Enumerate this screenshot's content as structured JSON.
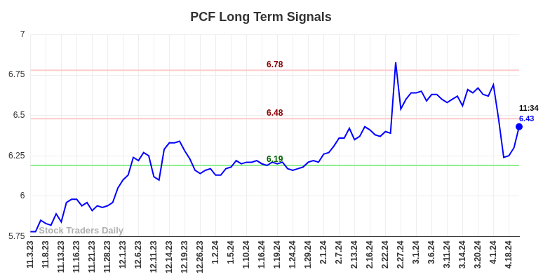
{
  "chart_data": {
    "type": "line",
    "title": "PCF Long Term Signals",
    "categories": [
      "11.3.23",
      null,
      null,
      "11.8.23",
      null,
      null,
      "11.13.23",
      null,
      null,
      "11.16.23",
      null,
      null,
      "11.21.23",
      null,
      null,
      "11.28.23",
      null,
      null,
      "12.1.23",
      null,
      null,
      "12.6.23",
      null,
      null,
      "12.11.23",
      null,
      null,
      "12.14.23",
      null,
      null,
      "12.19.23",
      null,
      null,
      "12.26.23",
      null,
      null,
      "1.2.24",
      null,
      null,
      "1.5.24",
      null,
      null,
      "1.10.24",
      null,
      null,
      "1.16.24",
      null,
      null,
      "1.19.24",
      null,
      null,
      "1.24.24",
      null,
      null,
      "1.29.24",
      null,
      null,
      "2.1.24",
      null,
      null,
      "2.7.24",
      null,
      null,
      "2.13.24",
      null,
      null,
      "2.16.24",
      null,
      null,
      "2.22.24",
      null,
      null,
      "2.27.24",
      null,
      null,
      "3.1.24",
      null,
      null,
      "3.6.24",
      null,
      null,
      "3.11.24",
      null,
      null,
      "3.14.24",
      null,
      null,
      "3.20.24",
      null,
      null,
      "4.1.24",
      null,
      null,
      "4.18.24",
      null,
      null
    ],
    "values": [
      5.78,
      5.78,
      5.85,
      5.83,
      5.82,
      5.89,
      5.84,
      5.96,
      5.98,
      5.98,
      5.94,
      5.96,
      5.91,
      5.94,
      5.93,
      5.94,
      5.96,
      6.05,
      6.1,
      6.13,
      6.24,
      6.22,
      6.27,
      6.25,
      6.12,
      6.1,
      6.29,
      6.33,
      6.33,
      6.34,
      6.28,
      6.23,
      6.16,
      6.14,
      6.16,
      6.17,
      6.13,
      6.13,
      6.17,
      6.18,
      6.22,
      6.2,
      6.21,
      6.21,
      6.22,
      6.2,
      6.19,
      6.21,
      6.2,
      6.21,
      6.17,
      6.16,
      6.17,
      6.18,
      6.21,
      6.22,
      6.21,
      6.26,
      6.27,
      6.31,
      6.36,
      6.36,
      6.42,
      6.35,
      6.37,
      6.43,
      6.41,
      6.38,
      6.37,
      6.4,
      6.39,
      6.83,
      6.54,
      6.6,
      6.64,
      6.64,
      6.65,
      6.59,
      6.63,
      6.63,
      6.6,
      6.58,
      6.6,
      6.62,
      6.56,
      6.66,
      6.64,
      6.67,
      6.63,
      6.62,
      6.69,
      6.48,
      6.24,
      6.25,
      6.3,
      6.43
    ],
    "color": "#0000ff",
    "marker": "last",
    "ylim": [
      5.75,
      7
    ],
    "yticks": [
      5.75,
      6,
      6.25,
      6.5,
      6.75,
      7
    ],
    "grid": true,
    "annotations": [
      {
        "y": 6.78,
        "label": "6.78",
        "color": "#ffcccc",
        "text_color": "#8b0000"
      },
      {
        "y": 6.48,
        "label": "6.48",
        "color": "#ffcccc",
        "text_color": "#8b0000"
      },
      {
        "y": 6.19,
        "label": "6.19",
        "color": "#90ee90",
        "text_color": "#006400"
      }
    ],
    "end_label": {
      "time": "11:34",
      "value_label": "6.43"
    },
    "watermark": "Stock Traders Daily"
  }
}
